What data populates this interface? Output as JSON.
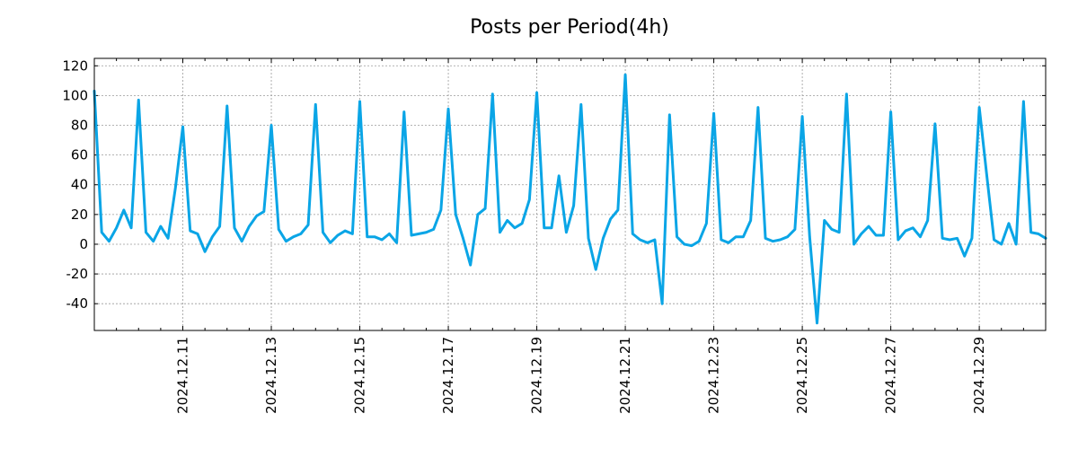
{
  "chart_data": {
    "type": "line",
    "title": "Posts per Period(4h)",
    "xlabel": "",
    "ylabel": "",
    "ylim": [
      -58,
      125
    ],
    "xlim": [
      0,
      129
    ],
    "yticks": [
      120,
      100,
      80,
      60,
      40,
      20,
      0,
      -20,
      -40
    ],
    "ytick_labels": [
      "120",
      "100",
      "80",
      "60",
      "40",
      "20",
      "0",
      "-20",
      "-40"
    ],
    "xticks": [
      {
        "x": 12,
        "label": "2024.12.11"
      },
      {
        "x": 24,
        "label": "2024.12.13"
      },
      {
        "x": 36,
        "label": "2024.12.15"
      },
      {
        "x": 48,
        "label": "2024.12.17"
      },
      {
        "x": 60,
        "label": "2024.12.19"
      },
      {
        "x": 72,
        "label": "2024.12.21"
      },
      {
        "x": 84,
        "label": "2024.12.23"
      },
      {
        "x": 96,
        "label": "2024.12.25"
      },
      {
        "x": 108,
        "label": "2024.12.27"
      },
      {
        "x": 120,
        "label": "2024.12.29"
      }
    ],
    "minor_xticks": [
      3,
      6,
      9,
      15,
      18,
      21,
      27,
      30,
      33,
      39,
      42,
      45,
      51,
      54,
      57,
      63,
      66,
      69,
      75,
      78,
      81,
      87,
      90,
      93,
      99,
      102,
      105,
      111,
      114,
      117,
      123,
      126
    ],
    "grid": true,
    "color": "#0aa5e6",
    "series": [
      {
        "name": "posts",
        "values": [
          103,
          8,
          2,
          11,
          23,
          11,
          97,
          8,
          2,
          12,
          4,
          38,
          79,
          9,
          7,
          -5,
          5,
          12,
          93,
          11,
          2,
          12,
          19,
          22,
          80,
          10,
          2,
          5,
          7,
          13,
          94,
          8,
          1,
          6,
          9,
          7,
          96,
          5,
          5,
          3,
          7,
          1,
          89,
          6,
          7,
          8,
          10,
          23,
          91,
          20,
          4,
          -14,
          20,
          24,
          101,
          8,
          16,
          11,
          14,
          30,
          102,
          11,
          11,
          46,
          8,
          26,
          94,
          4,
          -17,
          4,
          17,
          23,
          114,
          7,
          3,
          1,
          3,
          -40,
          87,
          5,
          0,
          -1,
          2,
          14,
          88,
          3,
          1,
          5,
          5,
          16,
          92,
          4,
          2,
          3,
          5,
          10,
          86,
          5,
          -53,
          16,
          10,
          8,
          101,
          0,
          7,
          12,
          6,
          6,
          89,
          3,
          9,
          11,
          5,
          16,
          81,
          4,
          3,
          4,
          -8,
          4,
          92,
          47,
          3,
          0,
          14,
          0,
          96,
          8,
          7,
          4
        ]
      }
    ]
  }
}
